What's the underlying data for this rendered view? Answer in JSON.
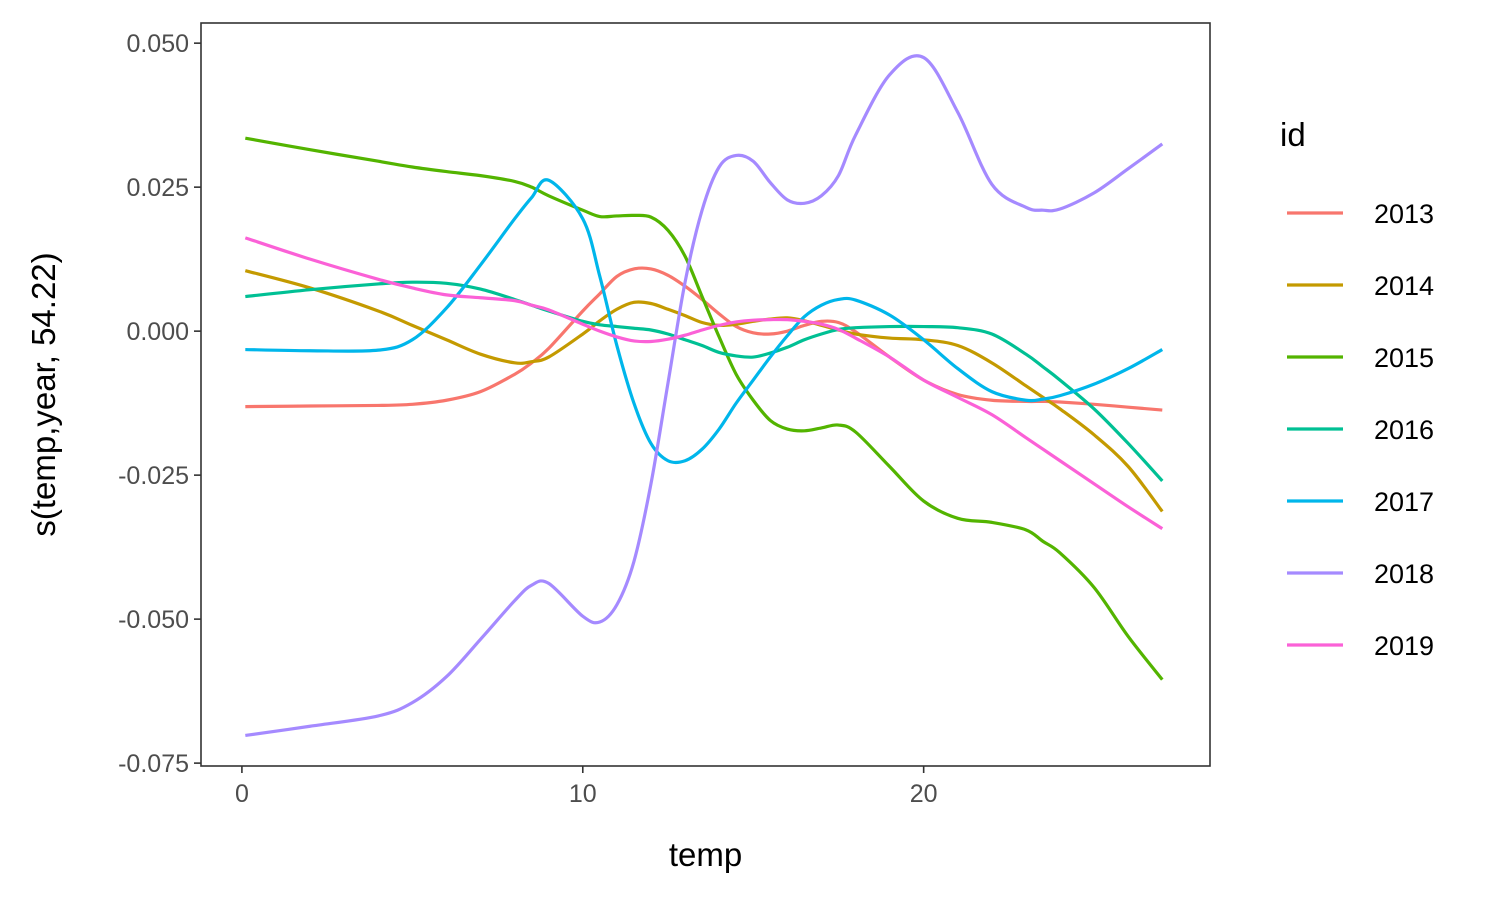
{
  "chart_data": {
    "type": "line",
    "xlabel": "temp",
    "ylabel": "s(temp,year, 54.22)",
    "xlim": [
      -1.2,
      28.4
    ],
    "ylim": [
      -0.0755,
      0.0535
    ],
    "x_ticks": [
      0,
      10,
      20
    ],
    "x_tick_labels": [
      "0",
      "10",
      "20"
    ],
    "y_ticks": [
      -0.075,
      -0.05,
      -0.025,
      0.0,
      0.025,
      0.05
    ],
    "y_tick_labels": [
      "-0.075",
      "-0.050",
      "-0.025",
      "0.000",
      "0.025",
      "0.050"
    ],
    "grid": false,
    "legend": {
      "title": "id",
      "position": "right"
    },
    "x": [
      0.1,
      2,
      4,
      5,
      6,
      7,
      8,
      8.5,
      9,
      10,
      10.5,
      11,
      11.5,
      12,
      12.5,
      13,
      13.5,
      14,
      14.5,
      15,
      15.5,
      16,
      16.5,
      17,
      17.5,
      18,
      19,
      20,
      21,
      22,
      23,
      23.5,
      24,
      25,
      26,
      27
    ],
    "series": [
      {
        "name": "2013",
        "color": "#F8766D",
        "values": [
          -0.0131,
          -0.013,
          -0.0129,
          -0.0127,
          -0.012,
          -0.0105,
          -0.0075,
          -0.0055,
          -0.003,
          0.0035,
          0.0065,
          0.0095,
          0.0108,
          0.0108,
          0.0097,
          0.0078,
          0.0055,
          0.003,
          0.0008,
          -0.0003,
          -0.0005,
          0.0,
          0.001,
          0.0017,
          0.0015,
          -0.0001,
          -0.0045,
          -0.0085,
          -0.011,
          -0.012,
          -0.0122,
          -0.0122,
          -0.0123,
          -0.0127,
          -0.0132,
          -0.0137
        ]
      },
      {
        "name": "2014",
        "color": "#C49A00",
        "values": [
          0.0105,
          0.0075,
          0.0035,
          0.001,
          -0.0015,
          -0.004,
          -0.0055,
          -0.0053,
          -0.0045,
          -0.0005,
          0.0018,
          0.0038,
          0.005,
          0.0048,
          0.0038,
          0.0027,
          0.0015,
          0.001,
          0.0012,
          0.0017,
          0.0021,
          0.0023,
          0.0018,
          0.001,
          0.0002,
          -0.0005,
          -0.0012,
          -0.0015,
          -0.0025,
          -0.0055,
          -0.0095,
          -0.0115,
          -0.0135,
          -0.018,
          -0.0235,
          -0.0313
        ]
      },
      {
        "name": "2015",
        "color": "#53B400",
        "values": [
          0.0335,
          0.0315,
          0.0295,
          0.0285,
          0.0277,
          0.027,
          0.026,
          0.025,
          0.0235,
          0.021,
          0.0199,
          0.02,
          0.0201,
          0.0198,
          0.0175,
          0.013,
          0.006,
          -0.001,
          -0.0075,
          -0.012,
          -0.0155,
          -0.017,
          -0.0173,
          -0.0168,
          -0.0163,
          -0.0175,
          -0.0235,
          -0.0295,
          -0.0325,
          -0.0332,
          -0.0345,
          -0.0365,
          -0.0385,
          -0.0445,
          -0.053,
          -0.0605
        ]
      },
      {
        "name": "2016",
        "color": "#00C094",
        "values": [
          0.006,
          0.0072,
          0.0082,
          0.0085,
          0.0083,
          0.0073,
          0.0055,
          0.0045,
          0.0035,
          0.0017,
          0.0011,
          0.0008,
          0.0005,
          0.0002,
          -0.0005,
          -0.0015,
          -0.0025,
          -0.0037,
          -0.0043,
          -0.0045,
          -0.0038,
          -0.0028,
          -0.0015,
          -0.0005,
          0.0003,
          0.0006,
          0.0008,
          0.0008,
          0.0006,
          -0.0005,
          -0.004,
          -0.0062,
          -0.0085,
          -0.0135,
          -0.0195,
          -0.026
        ]
      },
      {
        "name": "2017",
        "color": "#00B6EB",
        "values": [
          -0.0032,
          -0.0034,
          -0.0033,
          -0.0015,
          0.004,
          0.0115,
          0.0195,
          0.0232,
          0.0262,
          0.0195,
          0.0095,
          -0.0025,
          -0.0125,
          -0.0195,
          -0.0225,
          -0.0225,
          -0.0205,
          -0.017,
          -0.0125,
          -0.0085,
          -0.0045,
          -0.0008,
          0.0025,
          0.0045,
          0.0055,
          0.0054,
          0.0028,
          -0.0015,
          -0.0065,
          -0.0105,
          -0.012,
          -0.0118,
          -0.0112,
          -0.0092,
          -0.0065,
          -0.0032
        ]
      },
      {
        "name": "2018",
        "color": "#A58AFF",
        "values": [
          -0.0702,
          -0.0686,
          -0.0668,
          -0.0645,
          -0.06,
          -0.0535,
          -0.0468,
          -0.0441,
          -0.0438,
          -0.0495,
          -0.0505,
          -0.0475,
          -0.04,
          -0.0265,
          -0.009,
          0.0085,
          0.021,
          0.0285,
          0.0305,
          0.0295,
          0.0258,
          0.0228,
          0.0222,
          0.0235,
          0.027,
          0.034,
          0.0445,
          0.0475,
          0.038,
          0.0255,
          0.0215,
          0.021,
          0.0212,
          0.024,
          0.0282,
          0.0325
        ]
      },
      {
        "name": "2019",
        "color": "#FB61D7",
        "values": [
          0.0162,
          0.0125,
          0.009,
          0.0075,
          0.0063,
          0.0058,
          0.0053,
          0.0045,
          0.0037,
          0.0012,
          0.0,
          -0.001,
          -0.0017,
          -0.0018,
          -0.0014,
          -0.0007,
          0.0002,
          0.001,
          0.0016,
          0.0019,
          0.002,
          0.002,
          0.0017,
          0.0012,
          0.0003,
          -0.0012,
          -0.0045,
          -0.0085,
          -0.0115,
          -0.0145,
          -0.0185,
          -0.0205,
          -0.0225,
          -0.0265,
          -0.0305,
          -0.0343
        ]
      }
    ]
  }
}
